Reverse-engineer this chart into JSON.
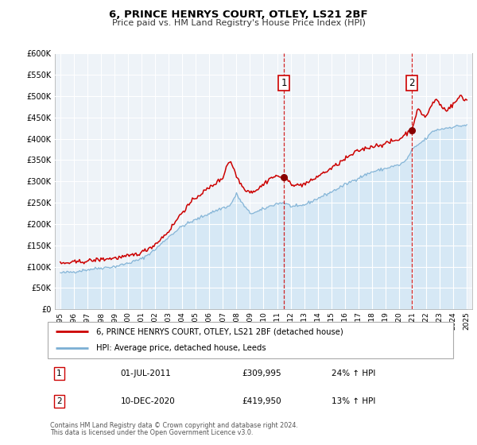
{
  "title": "6, PRINCE HENRYS COURT, OTLEY, LS21 2BF",
  "subtitle": "Price paid vs. HM Land Registry's House Price Index (HPI)",
  "legend_line1": "6, PRINCE HENRYS COURT, OTLEY, LS21 2BF (detached house)",
  "legend_line2": "HPI: Average price, detached house, Leeds",
  "annotation1_label": "1",
  "annotation1_date": "01-JUL-2011",
  "annotation1_price": "£309,995",
  "annotation1_hpi": "24% ↑ HPI",
  "annotation2_label": "2",
  "annotation2_date": "10-DEC-2020",
  "annotation2_price": "£419,950",
  "annotation2_hpi": "13% ↑ HPI",
  "footnote1": "Contains HM Land Registry data © Crown copyright and database right 2024.",
  "footnote2": "This data is licensed under the Open Government Licence v3.0.",
  "line1_color": "#cc0000",
  "line2_color": "#7bafd4",
  "fill_color": "#d6e8f5",
  "vline_color": "#cc0000",
  "background_color": "#ffffff",
  "plot_bg_color": "#eef3f8",
  "grid_color": "#ffffff",
  "ylim": [
    0,
    600000
  ],
  "yticks": [
    0,
    50000,
    100000,
    150000,
    200000,
    250000,
    300000,
    350000,
    400000,
    450000,
    500000,
    550000,
    600000
  ],
  "xlabel_years": [
    1995,
    1996,
    1997,
    1998,
    1999,
    2000,
    2001,
    2002,
    2003,
    2004,
    2005,
    2006,
    2007,
    2008,
    2009,
    2010,
    2011,
    2012,
    2013,
    2014,
    2015,
    2016,
    2017,
    2018,
    2019,
    2020,
    2021,
    2022,
    2023,
    2024,
    2025
  ],
  "sale1_x": 2011.5,
  "sale1_y": 309995,
  "sale2_x": 2020.94,
  "sale2_y": 419950,
  "vline1_x": 2011.5,
  "vline2_x": 2020.94,
  "xmin": 1994.6,
  "xmax": 2025.4
}
